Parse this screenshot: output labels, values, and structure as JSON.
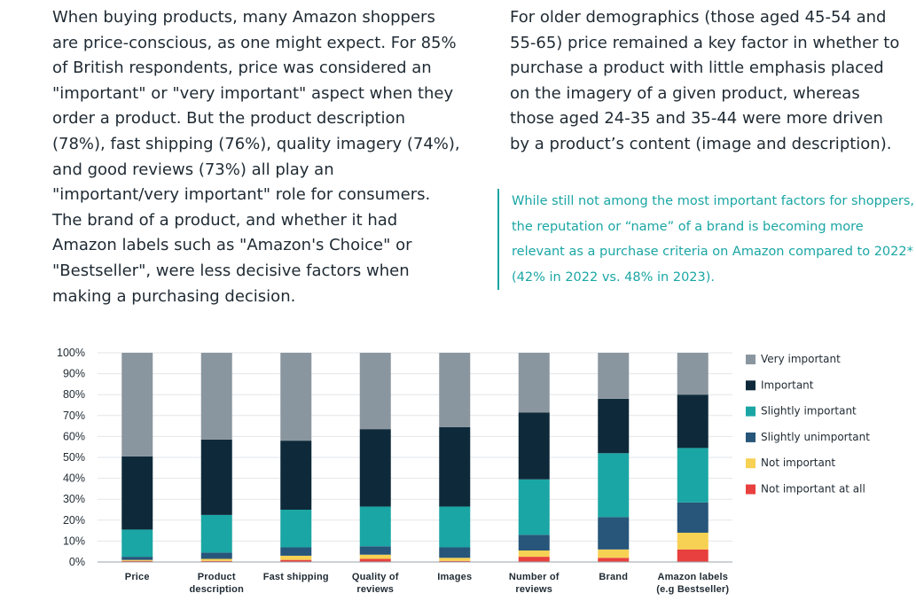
{
  "text": {
    "left_paragraph": "When buying products, many Amazon shoppers are price-conscious, as one might expect. For 85% of British respondents, price was considered an \"important\" or \"very important\" aspect when they order a product. But the product description (78%), fast shipping (76%), quality imagery (74%), and good reviews (73%) all play an \"important/very important\" role for consumers. The brand of a product, and whether it had Amazon labels such as \"Amazon's Choice\" or \"Bestseller\", were less decisive factors when making a purchasing decision.",
    "right_paragraph": "For older demographics (those aged 45-54 and 55-65) price remained a key factor in whether to purchase a product with little emphasis placed on the imagery of a given product, whereas those aged 24-35 and 35-44 were more driven by a product’s content (image and description).",
    "highlight_quote": "While still not among the most important factors for shoppers, the reputation or “name” of a brand is becoming more relevant as a purchase criteria on Amazon compared to 2022* (42% in 2022 vs. 48% in 2023)."
  },
  "colors": {
    "very_important": "#8a969f",
    "important": "#0e2a3a",
    "slightly_important": "#1aa6a4",
    "slightly_unimportant": "#27567a",
    "not_important": "#f7d154",
    "not_important_at_all": "#e8403e",
    "accent": "#1aa6a4"
  },
  "chart_data": {
    "type": "bar",
    "stacked": true,
    "title": "",
    "xlabel": "",
    "ylabel": "",
    "ylim": [
      0,
      100
    ],
    "y_ticks": [
      "0%",
      "10%",
      "20%",
      "30%",
      "40%",
      "50%",
      "60%",
      "70%",
      "80%",
      "90%",
      "100%"
    ],
    "legend_position": "right",
    "categories": [
      [
        "Price"
      ],
      [
        "Product",
        "description"
      ],
      [
        "Fast shipping"
      ],
      [
        "Quality of",
        "reviews"
      ],
      [
        "Images"
      ],
      [
        "Number of",
        "reviews"
      ],
      [
        "Brand"
      ],
      [
        "Amazon labels",
        "(e.g Bestseller)"
      ]
    ],
    "series": [
      {
        "name": "Not important at all",
        "color_key": "not_important_at_all",
        "values": [
          0.5,
          0.5,
          1,
          1.5,
          0.5,
          2.5,
          2,
          6
        ]
      },
      {
        "name": "Not important",
        "color_key": "not_important",
        "values": [
          0.5,
          1,
          2,
          2,
          1.5,
          3,
          4,
          8
        ]
      },
      {
        "name": "Slightly unimportant",
        "color_key": "slightly_unimportant",
        "values": [
          1.5,
          3,
          4,
          4,
          5,
          7.5,
          15.5,
          14.5
        ]
      },
      {
        "name": "Slightly important",
        "color_key": "slightly_important",
        "values": [
          13,
          18,
          18,
          19,
          19.5,
          26.5,
          30.5,
          26
        ]
      },
      {
        "name": "Important",
        "color_key": "important",
        "values": [
          35,
          36,
          33,
          37,
          38,
          32,
          26,
          25.5
        ]
      },
      {
        "name": "Very important",
        "color_key": "very_important",
        "values": [
          49.5,
          41.5,
          42,
          36.5,
          35.5,
          28.5,
          22,
          20
        ]
      }
    ],
    "legend_order": [
      "Very important",
      "Important",
      "Slightly important",
      "Slightly unimportant",
      "Not important",
      "Not important at all"
    ]
  }
}
